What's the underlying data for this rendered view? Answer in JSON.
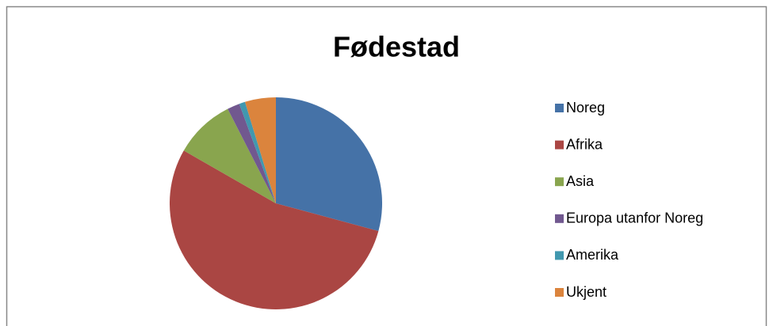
{
  "chart_data": {
    "type": "pie",
    "title": "Fødestad",
    "categories": [
      "Noreg",
      "Afrika",
      "Asia",
      "Europa utanfor Noreg",
      "Amerika",
      "Ukjent"
    ],
    "values": [
      29.2,
      54.1,
      9.2,
      1.9,
      0.9,
      4.7
    ],
    "colors": [
      "#4572a7",
      "#aa4643",
      "#89a54e",
      "#71588f",
      "#4198af",
      "#db843d"
    ],
    "legend": "right"
  }
}
